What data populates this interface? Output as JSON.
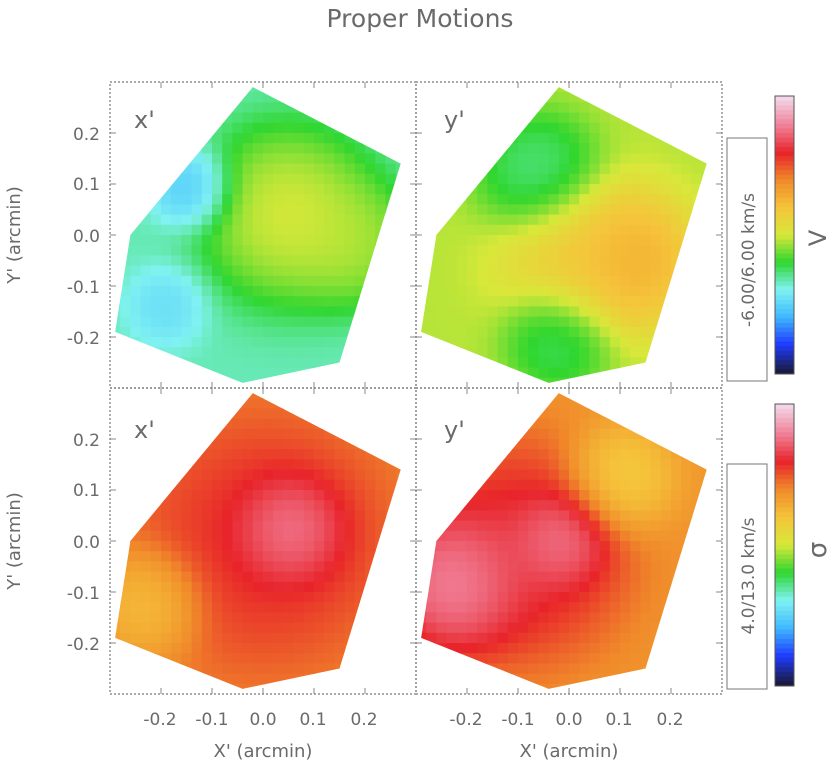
{
  "chart_data": {
    "type": "heatmap",
    "title": "Proper Motions",
    "xlabel": "X' (arcmin)",
    "ylabel": "Y' (arcmin)",
    "xlim": [
      -0.3,
      0.3
    ],
    "ylim": [
      -0.3,
      0.3
    ],
    "x_ticks": [
      "-0.2",
      "-0.1",
      "0.0",
      "0.1",
      "0.2"
    ],
    "y_ticks": [
      "0.2",
      "0.1",
      "0.0",
      "-0.1",
      "-0.2"
    ],
    "panels": [
      {
        "row": "V",
        "component": "x'",
        "blobs": [
          {
            "x": -0.14,
            "y": 0.09,
            "r": 0.06,
            "v": 0.2
          },
          {
            "x": -0.19,
            "y": -0.14,
            "r": 0.06,
            "v": 0.25
          },
          {
            "x": 0.05,
            "y": 0.04,
            "r": 0.13,
            "v": 0.55
          },
          {
            "x": 0.18,
            "y": -0.02,
            "r": 0.09,
            "v": 0.5
          }
        ],
        "base": 0.33
      },
      {
        "row": "V",
        "component": "y'",
        "blobs": [
          {
            "x": -0.06,
            "y": 0.12,
            "r": 0.09,
            "v": 0.32
          },
          {
            "x": -0.02,
            "y": -0.2,
            "r": 0.08,
            "v": 0.33
          },
          {
            "x": 0.12,
            "y": -0.05,
            "r": 0.1,
            "v": 0.68
          },
          {
            "x": 0.02,
            "y": -0.05,
            "r": 0.12,
            "v": 0.6
          }
        ],
        "base": 0.48
      },
      {
        "row": "sigma",
        "component": "x'",
        "blobs": [
          {
            "x": 0.05,
            "y": 0.02,
            "r": 0.08,
            "v": 0.98
          },
          {
            "x": 0.0,
            "y": 0.0,
            "r": 0.18,
            "v": 0.82
          },
          {
            "x": -0.22,
            "y": -0.12,
            "r": 0.08,
            "v": 0.58
          }
        ],
        "base": 0.7
      },
      {
        "row": "sigma",
        "component": "y'",
        "blobs": [
          {
            "x": -0.22,
            "y": -0.08,
            "r": 0.1,
            "v": 0.98
          },
          {
            "x": -0.02,
            "y": 0.0,
            "r": 0.07,
            "v": 0.95
          },
          {
            "x": -0.1,
            "y": -0.02,
            "r": 0.16,
            "v": 0.85
          },
          {
            "x": 0.1,
            "y": 0.12,
            "r": 0.08,
            "v": 0.55
          }
        ],
        "base": 0.68
      }
    ],
    "colorbars": [
      {
        "symbol": "V",
        "range_label": "-6.00/6.00 km/s"
      },
      {
        "symbol": "σ",
        "range_label": "4.0/13.0 km/s"
      }
    ],
    "colormap": [
      "#1a1a40",
      "#1f3cff",
      "#3fb8ff",
      "#80f2f2",
      "#2fd62f",
      "#d8e83a",
      "#f5c43a",
      "#f08a2a",
      "#e8242a",
      "#f08098",
      "#f2d6e6"
    ]
  }
}
